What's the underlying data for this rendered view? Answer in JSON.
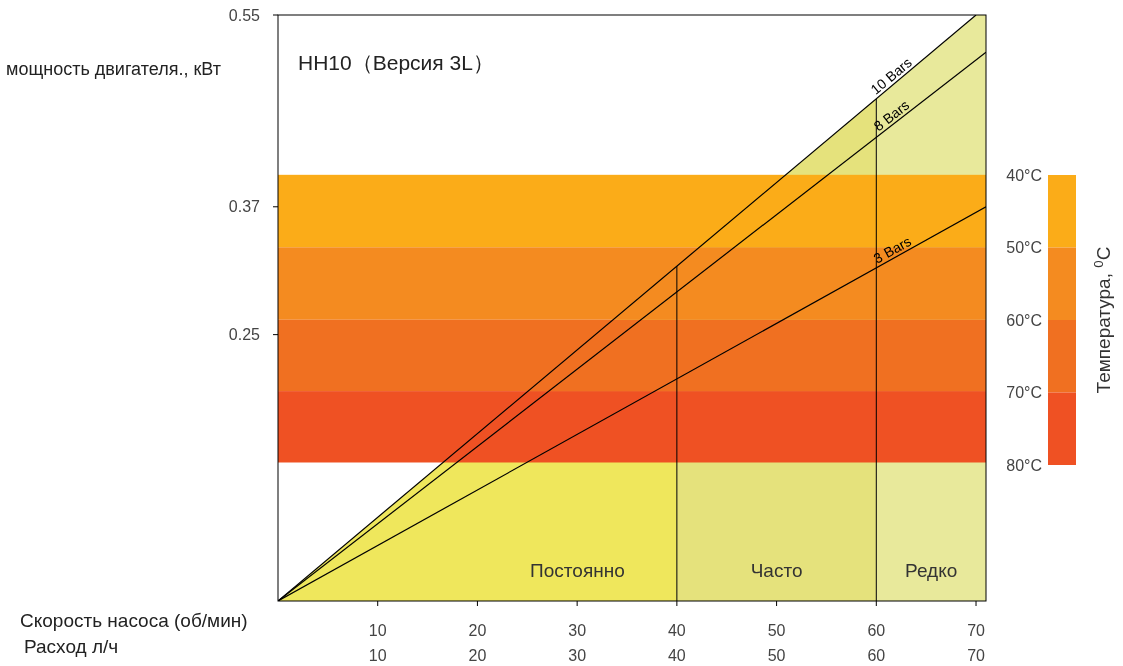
{
  "chart_data": {
    "type": "line",
    "title": "HH10（Версия 3L）",
    "xlabel": "Скорость насоса (об/мин)",
    "x2label": "Расход л/ч",
    "ylabel": "мощность двигателя., кВт",
    "clabel": "Температура, $^{0}$C",
    "xlim": [
      0,
      71
    ],
    "xticks": [
      10,
      20,
      30,
      40,
      50,
      60,
      70
    ],
    "x2lim": [
      0,
      71
    ],
    "x2ticks": [
      10,
      20,
      30,
      40,
      50,
      60,
      70
    ],
    "ylim": [
      0,
      0.55
    ],
    "yticks": [
      0.55,
      0.37,
      0.25
    ],
    "clim": [
      40,
      80
    ],
    "cticks": [
      {
        "value": 40,
        "label": "40°C"
      },
      {
        "value": 50,
        "label": "50°C"
      },
      {
        "value": 60,
        "label": "60°C"
      },
      {
        "value": 70,
        "label": "70°C"
      },
      {
        "value": 80,
        "label": "80°C"
      }
    ],
    "series": [
      {
        "name": "10 Bars",
        "color": "#000000",
        "x": [
          0,
          70
        ],
        "values": [
          0,
          0.55
        ]
      },
      {
        "name": "8 Bars",
        "color": "#000000",
        "x": [
          0,
          71
        ],
        "values": [
          0,
          0.515
        ]
      },
      {
        "name": "3 Bars",
        "color": "#000000",
        "x": [
          0,
          71
        ],
        "values": [
          0,
          0.37
        ]
      }
    ],
    "bands": [
      {
        "axis": "y",
        "from": 0.332,
        "to": 0.4,
        "color": "#fbac18"
      },
      {
        "axis": "y",
        "from": 0.264,
        "to": 0.332,
        "color": "#f48b20"
      },
      {
        "axis": "y",
        "from": 0.197,
        "to": 0.264,
        "color": "#f07021"
      },
      {
        "axis": "y",
        "from": 0.13,
        "to": 0.197,
        "color": "#ef5123"
      },
      {
        "axis": "x",
        "from": 0,
        "to": 40,
        "label": "Постоянно",
        "color": "#efe75c"
      },
      {
        "axis": "x",
        "from": 40,
        "to": 60,
        "label": "Часто",
        "color": "#e5e27c"
      },
      {
        "axis": "x",
        "from": 60,
        "to": 71,
        "label": "Редко",
        "color": "#e8e99b"
      }
    ]
  }
}
